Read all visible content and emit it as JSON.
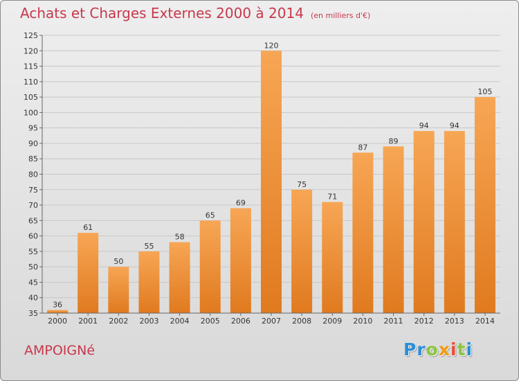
{
  "header": {
    "title": "Achats et Charges Externes 2000 à 2014",
    "subtitle": "(en milliers d'€)"
  },
  "commune": "AMPOIGNé",
  "logo": {
    "letters": [
      {
        "char": "P",
        "color": "#2a8fd6"
      },
      {
        "char": "r",
        "color": "#2a8fd6"
      },
      {
        "char": "o",
        "color": "#8cc63f"
      },
      {
        "char": "x",
        "color": "#f39c12"
      },
      {
        "char": "i",
        "color": "#e74c3c"
      },
      {
        "char": "t",
        "color": "#8cc63f"
      },
      {
        "char": "i",
        "color": "#2a8fd6"
      }
    ]
  },
  "colors": {
    "bar_top": "#f7a655",
    "bar_bottom": "#e07a1f",
    "accent": "#c8384c",
    "grid": "#c8c8c8"
  },
  "chart_data": {
    "type": "bar",
    "title": "Achats et Charges Externes 2000 à 2014",
    "subtitle": "(en milliers d'€)",
    "categories": [
      "2000",
      "2001",
      "2002",
      "2003",
      "2004",
      "2005",
      "2006",
      "2007",
      "2008",
      "2009",
      "2010",
      "2011",
      "2012",
      "2013",
      "2014"
    ],
    "values": [
      36,
      61,
      50,
      55,
      58,
      65,
      69,
      120,
      75,
      71,
      87,
      89,
      94,
      94,
      105
    ],
    "ylim": [
      35,
      125
    ],
    "yticks": [
      35,
      40,
      45,
      50,
      55,
      60,
      65,
      70,
      75,
      80,
      85,
      90,
      95,
      100,
      105,
      110,
      115,
      120,
      125
    ],
    "grid": true,
    "data_labels": true
  }
}
